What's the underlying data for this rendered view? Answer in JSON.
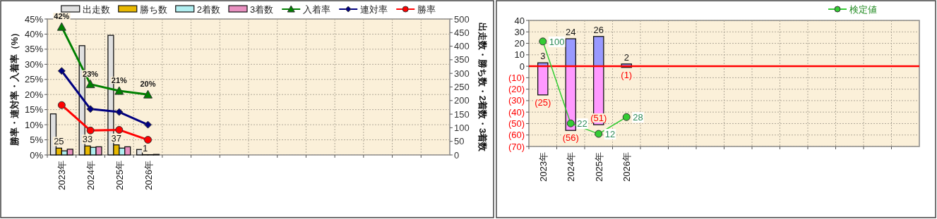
{
  "chart_data": [
    {
      "type": "bar",
      "categories": [
        "2023年",
        "2024年",
        "2025年",
        "2026年",
        null,
        null,
        null,
        null,
        null,
        null,
        null,
        null,
        null,
        null
      ],
      "ylabel": "勝率・連対率・入着率（%）",
      "y2label": "出走数・勝ち数・2着数・3着数",
      "ylim": [
        0,
        45
      ],
      "yticks": [
        {
          "value": 0,
          "label": "0%"
        },
        {
          "value": 5,
          "label": "5%"
        },
        {
          "value": 10,
          "label": "10%"
        },
        {
          "value": 15,
          "label": "15%"
        },
        {
          "value": 20,
          "label": "20%"
        },
        {
          "value": 25,
          "label": "25%"
        },
        {
          "value": 30,
          "label": "30%"
        },
        {
          "value": 35,
          "label": "35%"
        },
        {
          "value": 40,
          "label": "40%"
        },
        {
          "value": 45,
          "label": "45%"
        }
      ],
      "y2lim": [
        0,
        500
      ],
      "y2ticks": [
        0,
        50,
        100,
        150,
        200,
        250,
        300,
        350,
        400,
        450,
        500
      ],
      "grid": true,
      "legend": "top",
      "series": [
        {
          "name": "出走数",
          "color": "#e0e0e0",
          "axis": "y2",
          "values": [
            151,
            402,
            440,
            20,
            null,
            null,
            null,
            null,
            null,
            null,
            null,
            null,
            null,
            null
          ]
        },
        {
          "name": "勝ち数",
          "color": "#e8b800",
          "axis": "y2",
          "values": [
            25,
            33,
            37,
            1,
            null,
            null,
            null,
            null,
            null,
            null,
            null,
            null,
            null,
            null
          ],
          "value_labels": [
            "25",
            "33",
            "37",
            "1",
            null,
            null,
            null,
            null,
            null,
            null,
            null,
            null,
            null,
            null
          ]
        },
        {
          "name": "2着数",
          "color": "#b0eef0",
          "axis": "y2",
          "values": [
            15,
            28,
            25,
            1,
            null,
            null,
            null,
            null,
            null,
            null,
            null,
            null,
            null,
            null
          ]
        },
        {
          "name": "3着数",
          "color": "#e890c0",
          "axis": "y2",
          "values": [
            21,
            30,
            30,
            2,
            null,
            null,
            null,
            null,
            null,
            null,
            null,
            null,
            null,
            null
          ]
        },
        {
          "name": "入着率",
          "type": "line",
          "color": "#008000",
          "marker": "triangle",
          "values": [
            42.4,
            23.4,
            21.2,
            20.0,
            null,
            null,
            null,
            null,
            null,
            null,
            null,
            null,
            null,
            null
          ],
          "value_labels": [
            "42%",
            "23%",
            "21%",
            "20%",
            null,
            null,
            null,
            null,
            null,
            null,
            null,
            null,
            null,
            null
          ]
        },
        {
          "name": "連対率",
          "type": "line",
          "color": "#000080",
          "marker": "diamond",
          "values": [
            27.8,
            15.2,
            14.2,
            10.0,
            null,
            null,
            null,
            null,
            null,
            null,
            null,
            null,
            null,
            null
          ]
        },
        {
          "name": "勝率",
          "type": "line",
          "color": "#ff0000",
          "marker": "circle",
          "values": [
            16.5,
            8.1,
            8.3,
            5.0,
            null,
            null,
            null,
            null,
            null,
            null,
            null,
            null,
            null,
            null
          ]
        }
      ]
    },
    {
      "type": "bar",
      "stacked": true,
      "categories": [
        "2023年",
        "2024年",
        "2025年",
        "2026年",
        null,
        null,
        null,
        null,
        null,
        null,
        null,
        null,
        null,
        null
      ],
      "ylim": [
        -70,
        40
      ],
      "yticks": [
        {
          "value": -70,
          "label": "(70)"
        },
        {
          "value": -60,
          "label": "(60)"
        },
        {
          "value": -50,
          "label": "(50)"
        },
        {
          "value": -40,
          "label": "(40)"
        },
        {
          "value": -30,
          "label": "(30)"
        },
        {
          "value": -20,
          "label": "(20)"
        },
        {
          "value": -10,
          "label": "(10)"
        },
        0,
        10,
        20,
        30,
        40
      ],
      "y2lim": [
        0,
        120
      ],
      "grid": true,
      "legend": "top right",
      "ref_lines": [
        {
          "axis": "y",
          "value": 0,
          "color": "#ff0000"
        }
      ],
      "series": [
        {
          "color": "#9999ff",
          "values": [
            3,
            24,
            26,
            2,
            null,
            null,
            null,
            null,
            null,
            null,
            null,
            null,
            null,
            null
          ],
          "value_labels": [
            "3",
            "24",
            "26",
            "2",
            null,
            null,
            null,
            null,
            null,
            null,
            null,
            null,
            null,
            null
          ]
        },
        {
          "color": "#ff99ff",
          "values": [
            -25,
            -56,
            -51,
            -1,
            null,
            null,
            null,
            null,
            null,
            null,
            null,
            null,
            null,
            null
          ],
          "value_labels": [
            "(25)",
            "(56)",
            "(51)",
            "(1)",
            null,
            null,
            null,
            null,
            null,
            null,
            null,
            null,
            null,
            null
          ]
        },
        {
          "name": "検定値",
          "type": "line",
          "axis": "y2",
          "color": "#33cc33",
          "marker": "circle",
          "values": [
            100,
            22,
            12,
            28,
            null,
            null,
            null,
            null,
            null,
            null,
            null,
            null,
            null,
            null
          ],
          "value_labels": [
            "100",
            "22",
            "12",
            "28",
            null,
            null,
            null,
            null,
            null,
            null,
            null,
            null,
            null,
            null
          ]
        }
      ]
    }
  ]
}
